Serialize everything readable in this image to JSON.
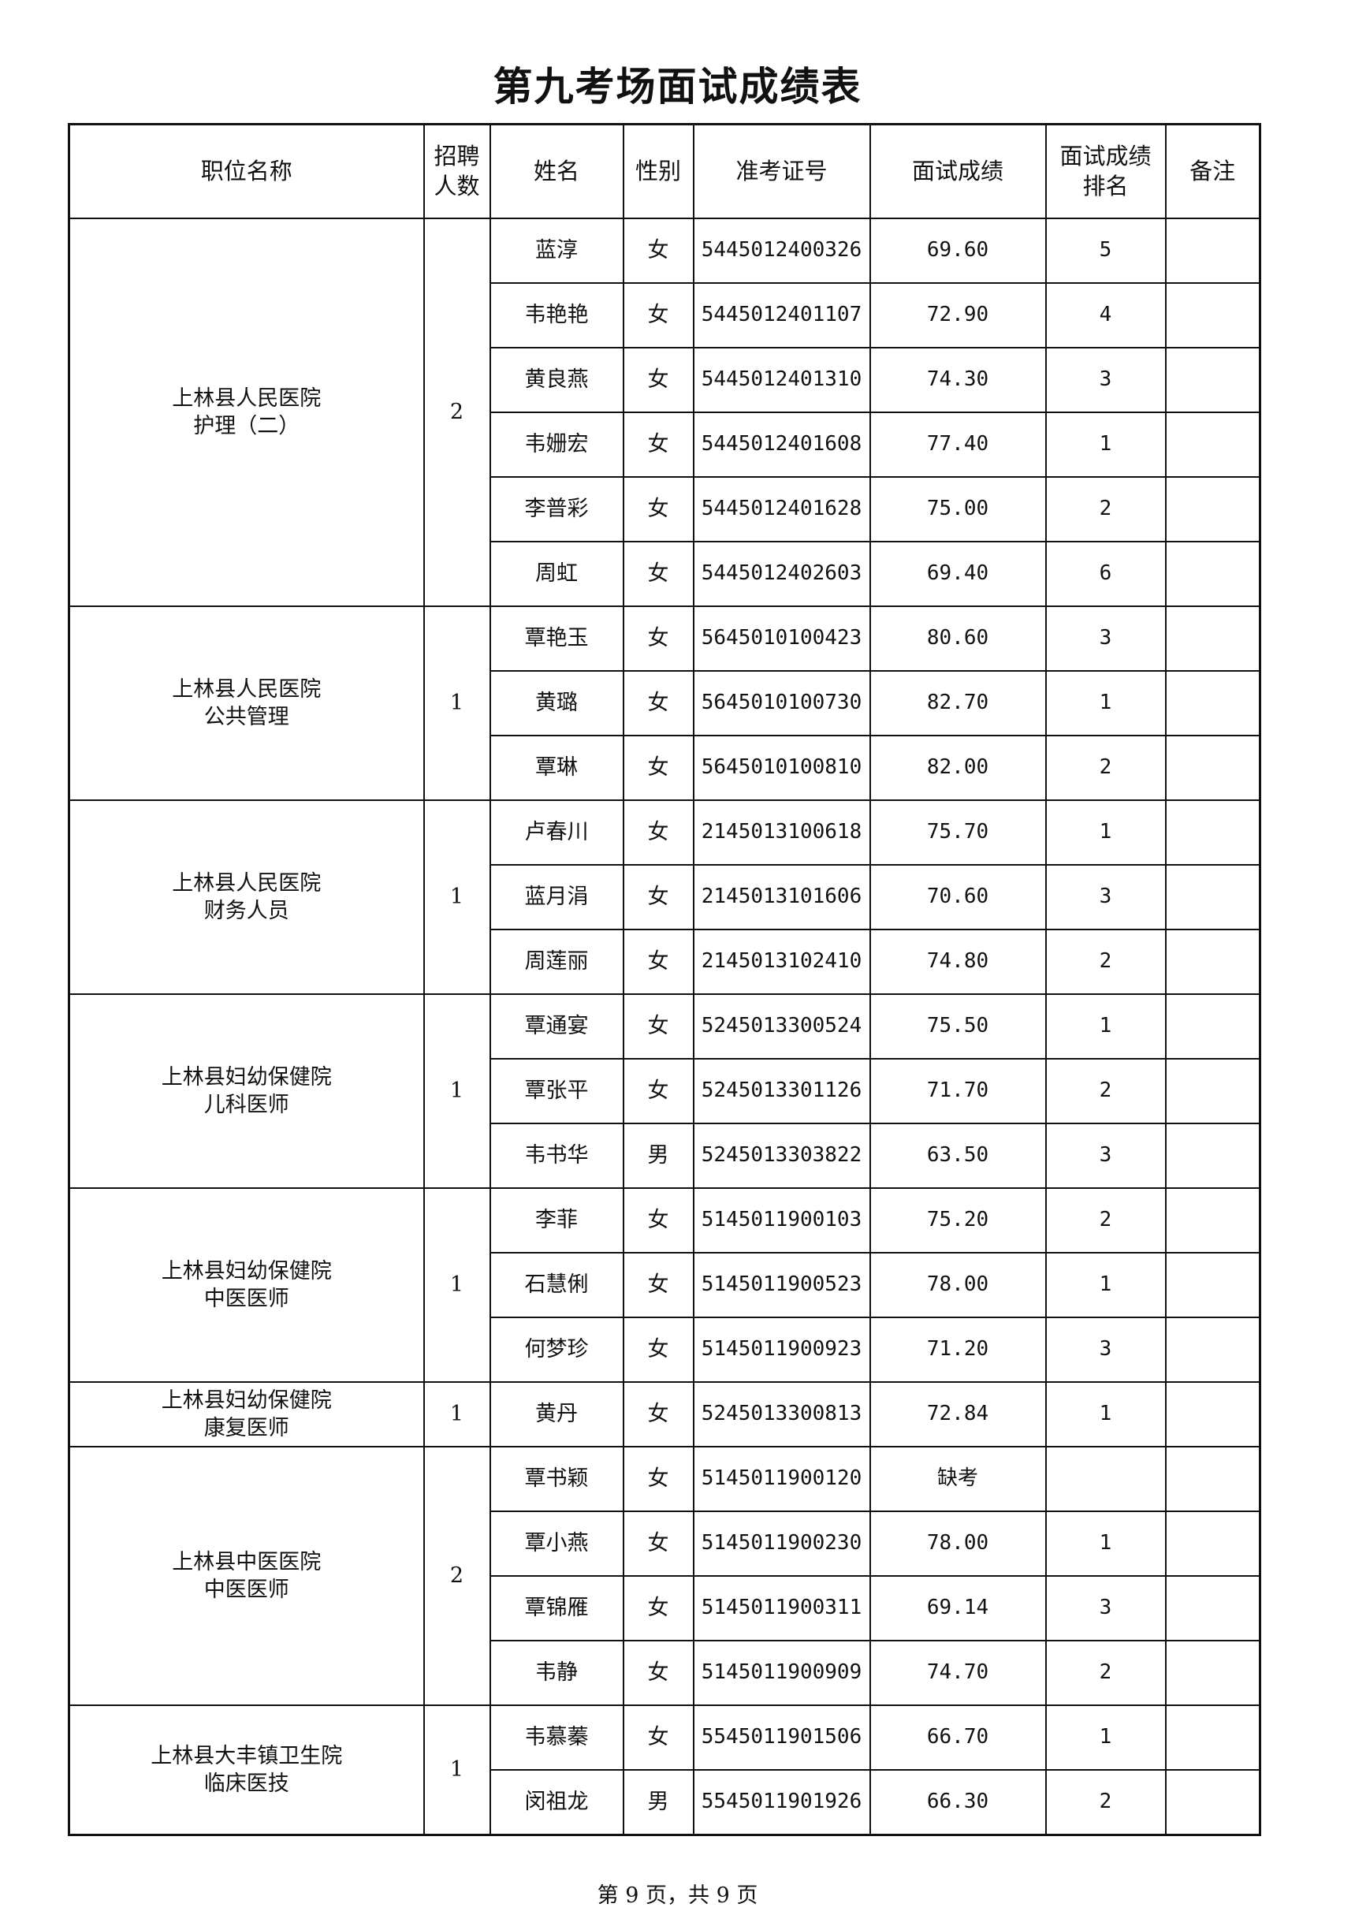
{
  "title": "第九考场面试成绩表",
  "headers": {
    "position": "职位名称",
    "quota": "招聘人数",
    "name": "姓名",
    "gender": "性别",
    "ticket": "准考证号",
    "score": "面试成绩",
    "rank": "面试成绩排名",
    "remark": "备注"
  },
  "groups": [
    {
      "position": [
        "上林县人民医院",
        "护理（二）"
      ],
      "quota": "2",
      "rows": [
        [
          "蓝淳",
          "女",
          "5445012400326",
          "69.60",
          "5"
        ],
        [
          "韦艳艳",
          "女",
          "5445012401107",
          "72.90",
          "4"
        ],
        [
          "黄良燕",
          "女",
          "5445012401310",
          "74.30",
          "3"
        ],
        [
          "韦姗宏",
          "女",
          "5445012401608",
          "77.40",
          "1"
        ],
        [
          "李普彩",
          "女",
          "5445012401628",
          "75.00",
          "2"
        ],
        [
          "周虹",
          "女",
          "5445012402603",
          "69.40",
          "6"
        ]
      ]
    },
    {
      "position": [
        "上林县人民医院",
        "公共管理"
      ],
      "quota": "1",
      "rows": [
        [
          "覃艳玉",
          "女",
          "5645010100423",
          "80.60",
          "3"
        ],
        [
          "黄璐",
          "女",
          "5645010100730",
          "82.70",
          "1"
        ],
        [
          "覃琳",
          "女",
          "5645010100810",
          "82.00",
          "2"
        ]
      ]
    },
    {
      "position": [
        "上林县人民医院",
        "财务人员"
      ],
      "quota": "1",
      "rows": [
        [
          "卢春川",
          "女",
          "2145013100618",
          "75.70",
          "1"
        ],
        [
          "蓝月涓",
          "女",
          "2145013101606",
          "70.60",
          "3"
        ],
        [
          "周莲丽",
          "女",
          "2145013102410",
          "74.80",
          "2"
        ]
      ]
    },
    {
      "position": [
        "上林县妇幼保健院",
        "儿科医师"
      ],
      "quota": "1",
      "rows": [
        [
          "覃通宴",
          "女",
          "5245013300524",
          "75.50",
          "1"
        ],
        [
          "覃张平",
          "女",
          "5245013301126",
          "71.70",
          "2"
        ],
        [
          "韦书华",
          "男",
          "5245013303822",
          "63.50",
          "3"
        ]
      ]
    },
    {
      "position": [
        "上林县妇幼保健院",
        "中医医师"
      ],
      "quota": "1",
      "rows": [
        [
          "李菲",
          "女",
          "5145011900103",
          "75.20",
          "2"
        ],
        [
          "石慧俐",
          "女",
          "5145011900523",
          "78.00",
          "1"
        ],
        [
          "何梦珍",
          "女",
          "5145011900923",
          "71.20",
          "3"
        ]
      ]
    },
    {
      "position": [
        "上林县妇幼保健院",
        "康复医师"
      ],
      "quota": "1",
      "rows": [
        [
          "黄丹",
          "女",
          "5245013300813",
          "72.84",
          "1"
        ]
      ]
    },
    {
      "position": [
        "上林县中医医院",
        "中医医师"
      ],
      "quota": "2",
      "rows": [
        [
          "覃书颖",
          "女",
          "5145011900120",
          "缺考",
          ""
        ],
        [
          "覃小燕",
          "女",
          "5145011900230",
          "78.00",
          "1"
        ],
        [
          "覃锦雁",
          "女",
          "5145011900311",
          "69.14",
          "3"
        ],
        [
          "韦静",
          "女",
          "5145011900909",
          "74.70",
          "2"
        ]
      ]
    },
    {
      "position": [
        "上林县大丰镇卫生院",
        "临床医技"
      ],
      "quota": "1",
      "rows": [
        [
          "韦慕蓁",
          "女",
          "5545011901506",
          "66.70",
          "1"
        ],
        [
          "闵祖龙",
          "男",
          "5545011901926",
          "66.30",
          "2"
        ]
      ]
    }
  ],
  "footer": "第 9 页，共 9 页"
}
